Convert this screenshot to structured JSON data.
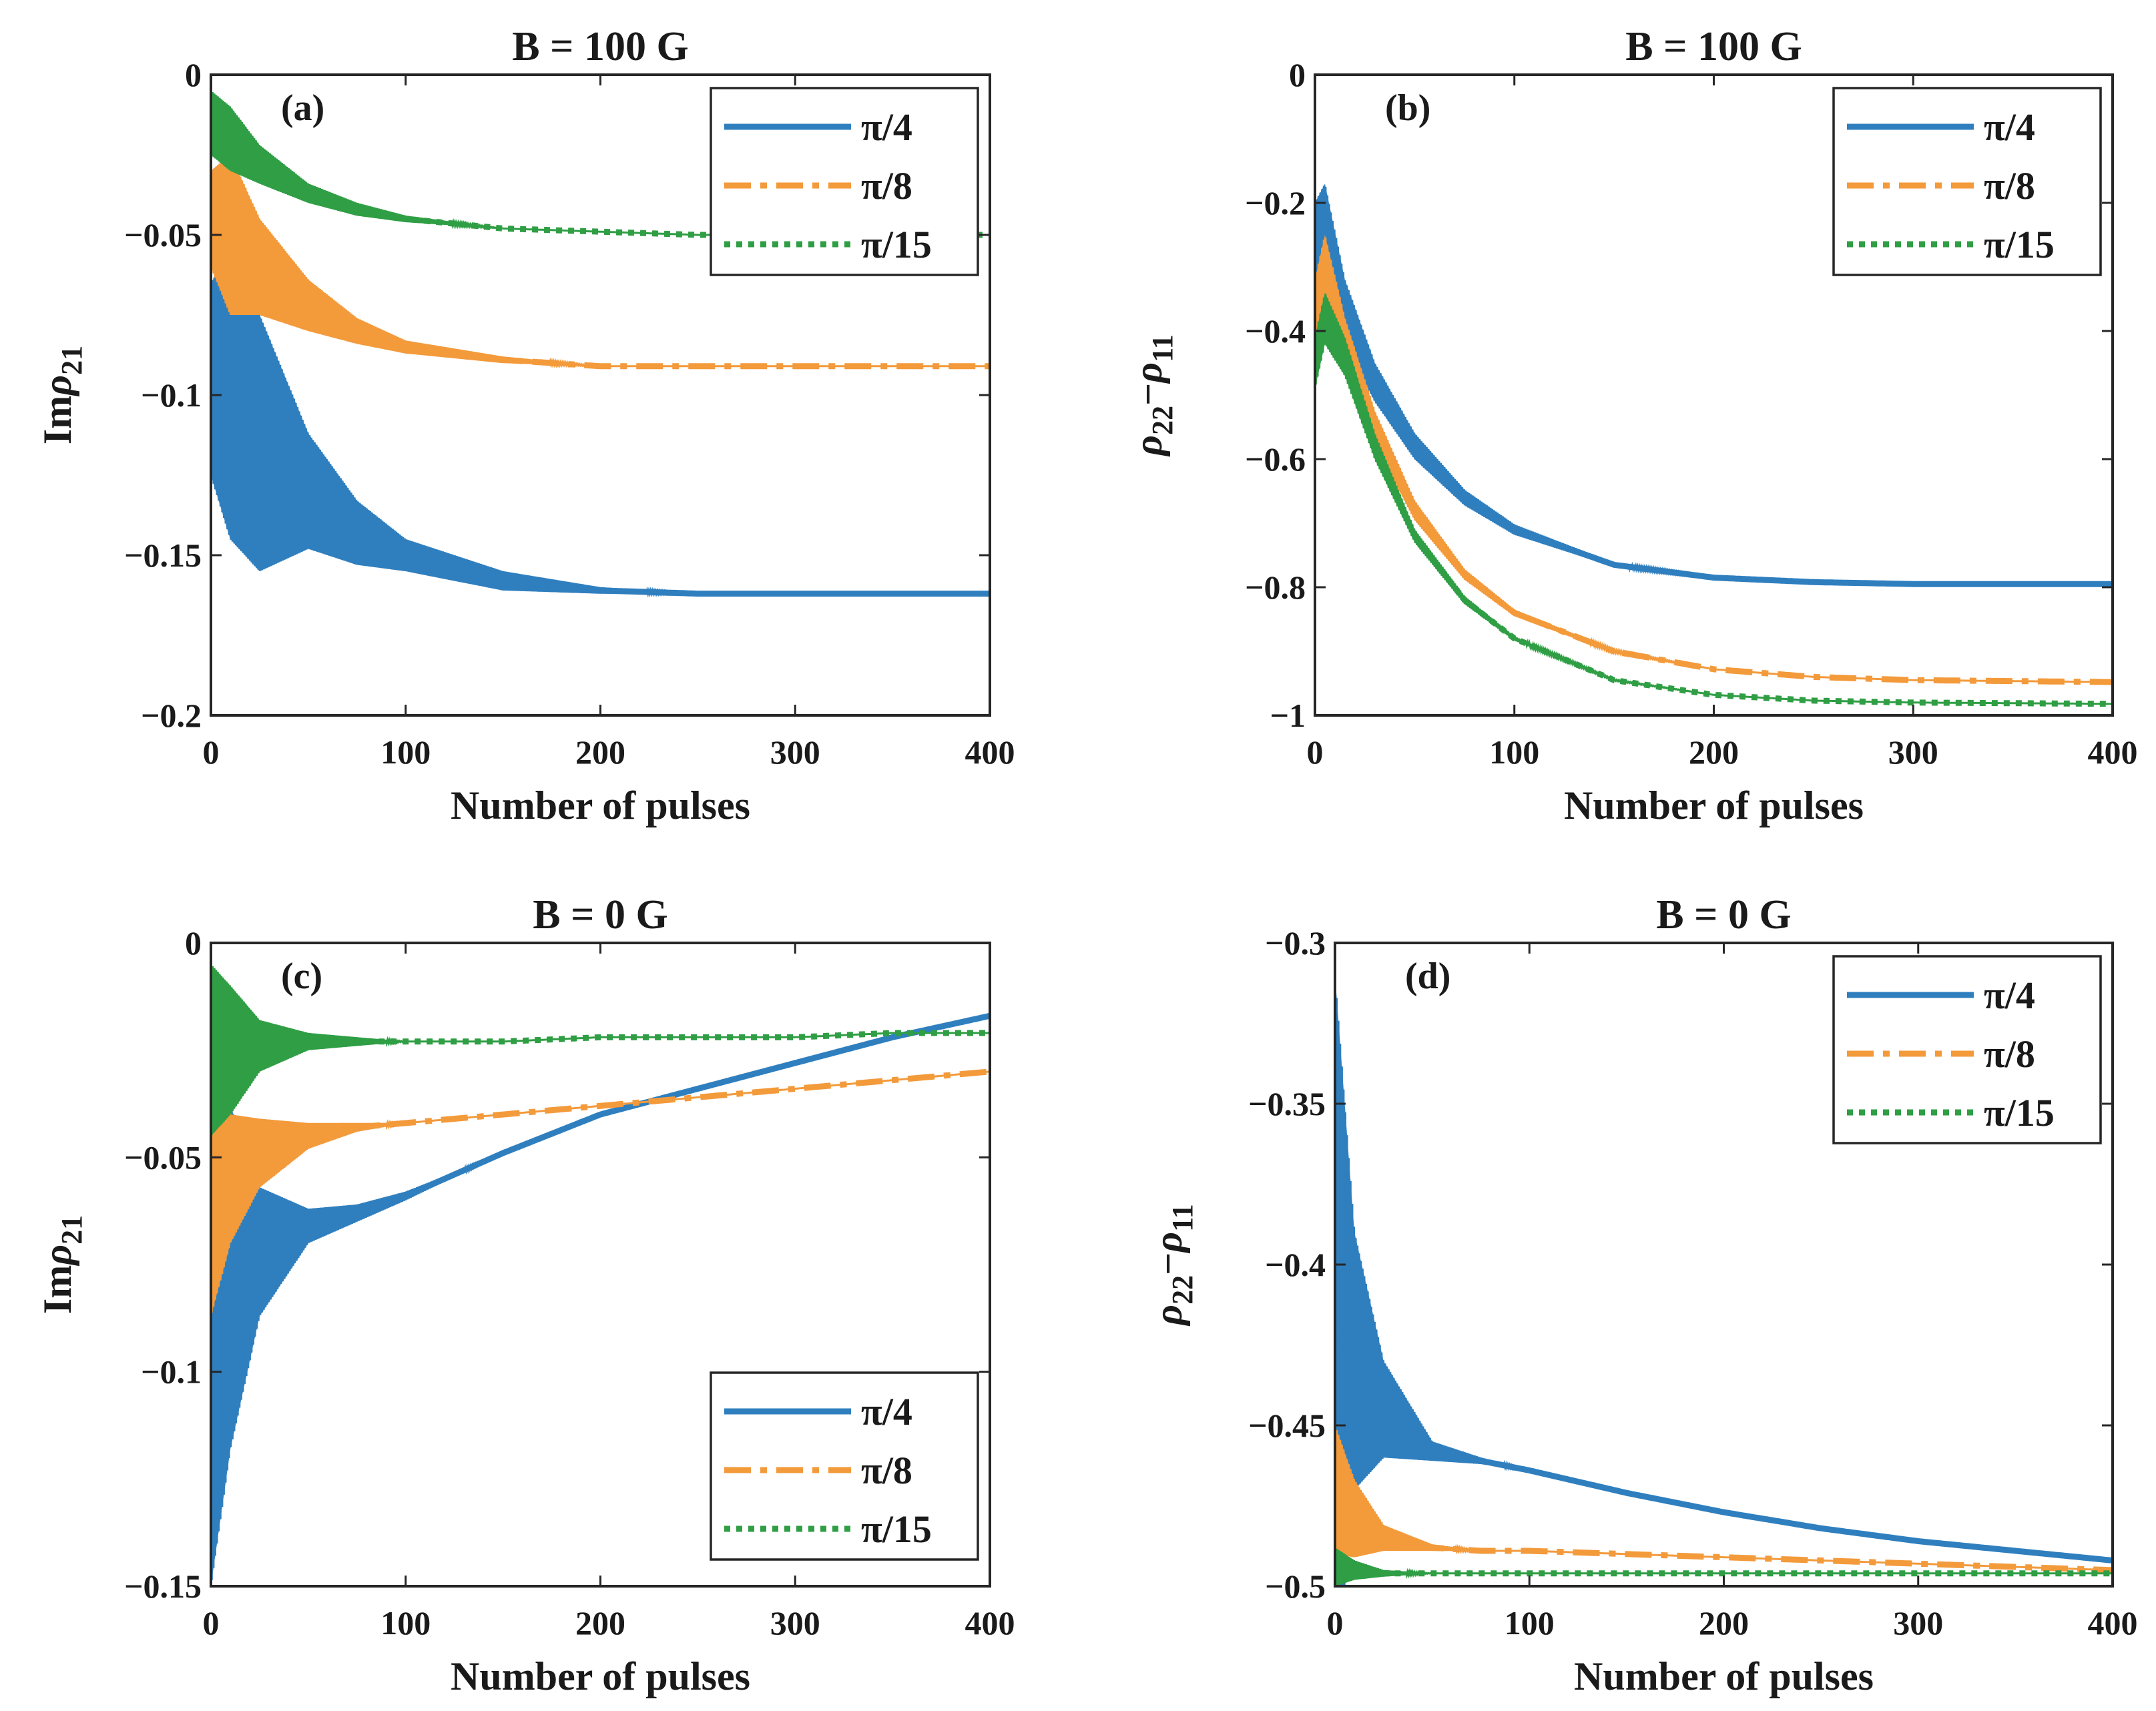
{
  "chart_data": [
    {
      "type": "line",
      "panel_label": "(a)",
      "title": "B = 100 G",
      "xlabel": "Number of pulses",
      "ylabel": {
        "base": "Im",
        "symbol": "ρ",
        "subscript": "21"
      },
      "xlim": [
        0,
        400
      ],
      "ylim": [
        -0.2,
        0
      ],
      "xticks": [
        0,
        100,
        200,
        300,
        400
      ],
      "yticks": [
        0,
        -0.05,
        -0.1,
        -0.15,
        -0.2
      ],
      "ytick_labels": [
        "0",
        "−0.05",
        "−0.1",
        "−0.15",
        "−0.2"
      ],
      "legend_position": "top-right",
      "series": [
        {
          "name": "π/4",
          "style": "solid",
          "color": "#2f7fbf",
          "x": [
            0,
            10,
            25,
            50,
            75,
            100,
            150,
            200,
            250,
            300,
            400
          ],
          "center": [
            -0.095,
            -0.1,
            -0.115,
            -0.13,
            -0.143,
            -0.15,
            -0.158,
            -0.161,
            -0.162,
            -0.162,
            -0.162
          ],
          "amplitude": [
            0.03,
            0.045,
            0.04,
            0.018,
            0.01,
            0.005,
            0.003,
            0.001,
            0,
            0,
            0
          ]
        },
        {
          "name": "π/8",
          "style": "dashdot",
          "color": "#f39a3b",
          "x": [
            0,
            10,
            25,
            50,
            75,
            100,
            150,
            200,
            250,
            300,
            400
          ],
          "center": [
            -0.045,
            -0.05,
            -0.06,
            -0.072,
            -0.08,
            -0.085,
            -0.089,
            -0.091,
            -0.091,
            -0.091,
            -0.091
          ],
          "amplitude": [
            0.015,
            0.025,
            0.015,
            0.008,
            0.004,
            0.002,
            0.001,
            0,
            0,
            0,
            0
          ]
        },
        {
          "name": "π/15",
          "style": "dotted",
          "color": "#2f9e44",
          "x": [
            0,
            10,
            25,
            50,
            75,
            100,
            150,
            200,
            250,
            300,
            400
          ],
          "center": [
            -0.015,
            -0.02,
            -0.028,
            -0.037,
            -0.042,
            -0.045,
            -0.048,
            -0.049,
            -0.05,
            -0.05,
            -0.05
          ],
          "amplitude": [
            0.01,
            0.01,
            0.006,
            0.003,
            0.002,
            0.001,
            0,
            0,
            0,
            0,
            0
          ]
        }
      ]
    },
    {
      "type": "line",
      "panel_label": "(b)",
      "title": "B = 100 G",
      "xlabel": "Number of pulses",
      "ylabel": {
        "base": "",
        "symbol": "ρ",
        "subscript": "22",
        "minus": "−",
        "symbol2": "ρ",
        "subscript2": "11"
      },
      "xlim": [
        0,
        400
      ],
      "ylim": [
        -1,
        0
      ],
      "xticks": [
        0,
        100,
        200,
        300,
        400
      ],
      "yticks": [
        0,
        -0.2,
        -0.4,
        -0.6,
        -0.8,
        -1
      ],
      "ytick_labels": [
        "0",
        "−0.2",
        "−0.4",
        "−0.6",
        "−0.8",
        "−1"
      ],
      "legend_position": "top-right",
      "series": [
        {
          "name": "π/4",
          "style": "solid",
          "color": "#2f7fbf",
          "x": [
            0,
            5,
            15,
            30,
            50,
            75,
            100,
            150,
            200,
            250,
            300,
            400
          ],
          "center": [
            -0.3,
            -0.25,
            -0.37,
            -0.48,
            -0.58,
            -0.66,
            -0.71,
            -0.765,
            -0.785,
            -0.792,
            -0.795,
            -0.795
          ],
          "amplitude": [
            0.1,
            0.08,
            0.05,
            0.03,
            0.02,
            0.012,
            0.008,
            0.003,
            0.001,
            0,
            0,
            0
          ]
        },
        {
          "name": "π/8",
          "style": "dashdot",
          "color": "#f39a3b",
          "x": [
            0,
            5,
            15,
            30,
            50,
            75,
            100,
            150,
            200,
            250,
            300,
            400
          ],
          "center": [
            -0.38,
            -0.3,
            -0.42,
            -0.55,
            -0.68,
            -0.78,
            -0.84,
            -0.9,
            -0.928,
            -0.94,
            -0.945,
            -0.948
          ],
          "amplitude": [
            0.06,
            0.05,
            0.04,
            0.025,
            0.015,
            0.008,
            0.005,
            0.002,
            0,
            0,
            0,
            0
          ]
        },
        {
          "name": "π/15",
          "style": "dotted",
          "color": "#2f9e44",
          "x": [
            0,
            5,
            15,
            30,
            50,
            75,
            100,
            150,
            200,
            250,
            300,
            400
          ],
          "center": [
            -0.45,
            -0.38,
            -0.44,
            -0.58,
            -0.72,
            -0.82,
            -0.88,
            -0.945,
            -0.968,
            -0.977,
            -0.98,
            -0.982
          ],
          "amplitude": [
            0.04,
            0.04,
            0.03,
            0.02,
            0.01,
            0.006,
            0.003,
            0.001,
            0,
            0,
            0,
            0
          ]
        }
      ]
    },
    {
      "type": "line",
      "panel_label": "(c)",
      "title": "B = 0 G",
      "xlabel": "Number of pulses",
      "ylabel": {
        "base": "Im",
        "symbol": "ρ",
        "subscript": "21"
      },
      "xlim": [
        0,
        400
      ],
      "ylim": [
        -0.15,
        0
      ],
      "xticks": [
        0,
        100,
        200,
        300,
        400
      ],
      "yticks": [
        0,
        -0.05,
        -0.1,
        -0.15
      ],
      "ytick_labels": [
        "0",
        "−0.05",
        "−0.1",
        "−0.15"
      ],
      "legend_position": "bottom-right",
      "series": [
        {
          "name": "π/4",
          "style": "solid",
          "color": "#2f7fbf",
          "x": [
            0,
            10,
            25,
            50,
            75,
            100,
            150,
            200,
            250,
            300,
            350,
            400
          ],
          "center": [
            -0.08,
            -0.078,
            -0.072,
            -0.066,
            -0.063,
            -0.059,
            -0.049,
            -0.04,
            -0.034,
            -0.028,
            -0.022,
            -0.017
          ],
          "amplitude": [
            0.07,
            0.04,
            0.015,
            0.004,
            0.002,
            0.001,
            0,
            0,
            0,
            0,
            0,
            0
          ]
        },
        {
          "name": "π/8",
          "style": "dashdot",
          "color": "#f39a3b",
          "x": [
            0,
            10,
            25,
            50,
            75,
            100,
            150,
            200,
            250,
            300,
            350,
            400
          ],
          "center": [
            -0.062,
            -0.055,
            -0.049,
            -0.045,
            -0.043,
            -0.042,
            -0.04,
            -0.038,
            -0.036,
            -0.034,
            -0.032,
            -0.03
          ],
          "amplitude": [
            0.025,
            0.015,
            0.008,
            0.003,
            0.001,
            0,
            0,
            0,
            0,
            0,
            0,
            0
          ]
        },
        {
          "name": "π/15",
          "style": "dotted",
          "color": "#2f9e44",
          "x": [
            0,
            10,
            25,
            50,
            75,
            100,
            150,
            200,
            250,
            300,
            350,
            400
          ],
          "center": [
            -0.025,
            -0.025,
            -0.024,
            -0.023,
            -0.023,
            -0.023,
            -0.023,
            -0.022,
            -0.022,
            -0.022,
            -0.021,
            -0.021
          ],
          "amplitude": [
            0.02,
            0.015,
            0.006,
            0.002,
            0.001,
            0,
            0,
            0,
            0,
            0,
            0,
            0
          ]
        }
      ]
    },
    {
      "type": "line",
      "panel_label": "(d)",
      "title": "B = 0 G",
      "xlabel": "Number of pulses",
      "ylabel": {
        "base": "",
        "symbol": "ρ",
        "subscript": "22",
        "minus": "−",
        "symbol2": "ρ",
        "subscript2": "11"
      },
      "xlim": [
        0,
        400
      ],
      "ylim": [
        -0.5,
        -0.3
      ],
      "xticks": [
        0,
        100,
        200,
        300,
        400
      ],
      "yticks": [
        -0.3,
        -0.35,
        -0.4,
        -0.45,
        -0.5
      ],
      "ytick_labels": [
        "−0.3",
        "−0.35",
        "−0.4",
        "−0.45",
        "−0.5"
      ],
      "legend_position": "top-right",
      "series": [
        {
          "name": "π/4",
          "style": "solid",
          "color": "#2f7fbf",
          "x": [
            0,
            10,
            25,
            50,
            75,
            100,
            150,
            200,
            250,
            300,
            350,
            400
          ],
          "center": [
            -0.42,
            -0.43,
            -0.445,
            -0.458,
            -0.461,
            -0.464,
            -0.471,
            -0.477,
            -0.482,
            -0.486,
            -0.489,
            -0.492
          ],
          "amplitude": [
            0.11,
            0.04,
            0.015,
            0.003,
            0.001,
            0,
            0,
            0,
            0,
            0,
            0,
            0
          ]
        },
        {
          "name": "π/8",
          "style": "dashdot",
          "color": "#f39a3b",
          "x": [
            0,
            10,
            25,
            50,
            75,
            100,
            150,
            200,
            250,
            300,
            350,
            400
          ],
          "center": [
            -0.47,
            -0.479,
            -0.485,
            -0.488,
            -0.489,
            -0.489,
            -0.49,
            -0.491,
            -0.492,
            -0.493,
            -0.494,
            -0.495
          ],
          "amplitude": [
            0.02,
            0.012,
            0.004,
            0.001,
            0,
            0,
            0,
            0,
            0,
            0,
            0,
            0
          ]
        },
        {
          "name": "π/15",
          "style": "dotted",
          "color": "#2f9e44",
          "x": [
            0,
            10,
            25,
            50,
            75,
            100,
            150,
            200,
            250,
            300,
            350,
            400
          ],
          "center": [
            -0.494,
            -0.495,
            -0.496,
            -0.496,
            -0.496,
            -0.496,
            -0.496,
            -0.496,
            -0.496,
            -0.496,
            -0.496,
            -0.496
          ],
          "amplitude": [
            0.006,
            0.003,
            0.001,
            0,
            0,
            0,
            0,
            0,
            0,
            0,
            0,
            0
          ]
        }
      ]
    }
  ]
}
